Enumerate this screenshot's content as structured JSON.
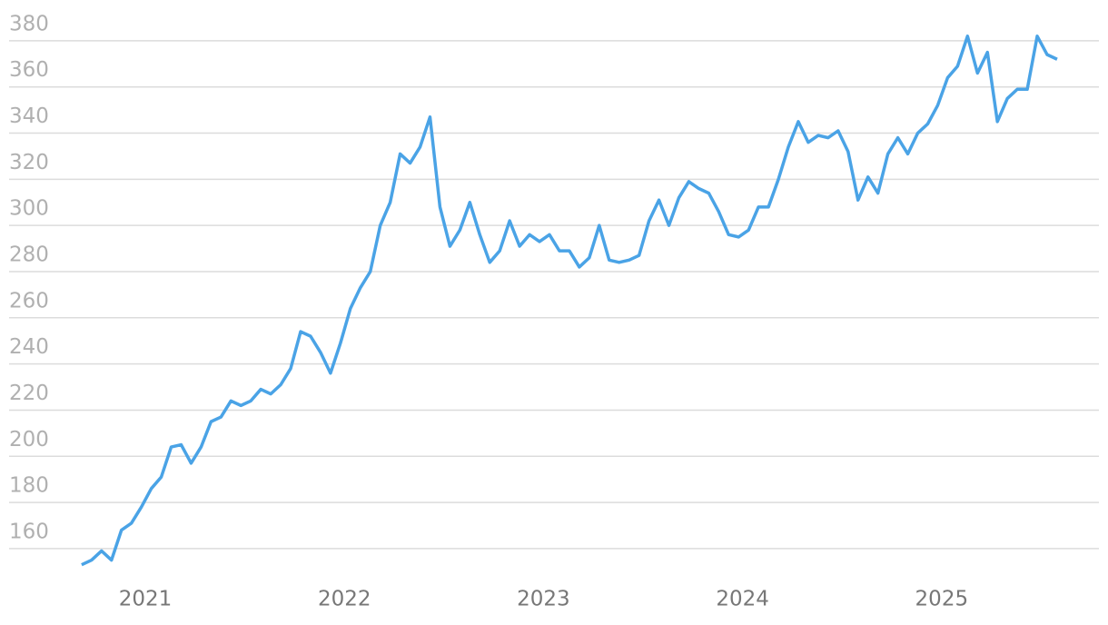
{
  "chart_data": {
    "type": "line",
    "x": [
      2020.68,
      2020.73,
      2020.78,
      2020.83,
      2020.88,
      2020.93,
      2020.98,
      2021.03,
      2021.08,
      2021.13,
      2021.18,
      2021.23,
      2021.28,
      2021.33,
      2021.38,
      2021.43,
      2021.48,
      2021.53,
      2021.58,
      2021.63,
      2021.68,
      2021.73,
      2021.78,
      2021.83,
      2021.88,
      2021.93,
      2021.98,
      2022.03,
      2022.08,
      2022.13,
      2022.18,
      2022.23,
      2022.28,
      2022.33,
      2022.38,
      2022.43,
      2022.48,
      2022.53,
      2022.58,
      2022.63,
      2022.68,
      2022.73,
      2022.78,
      2022.83,
      2022.88,
      2022.93,
      2022.98,
      2023.03,
      2023.08,
      2023.13,
      2023.18,
      2023.23,
      2023.28,
      2023.33,
      2023.38,
      2023.43,
      2023.48,
      2023.53,
      2023.58,
      2023.63,
      2023.68,
      2023.73,
      2023.78,
      2023.83,
      2023.88,
      2023.93,
      2023.98,
      2024.03,
      2024.08,
      2024.13,
      2024.18,
      2024.23,
      2024.28,
      2024.33,
      2024.38,
      2024.43,
      2024.48,
      2024.53,
      2024.58,
      2024.63,
      2024.68,
      2024.73,
      2024.78,
      2024.83,
      2024.88,
      2024.93,
      2024.98,
      2025.03,
      2025.08,
      2025.13,
      2025.18,
      2025.23,
      2025.28,
      2025.33,
      2025.38,
      2025.43,
      2025.48,
      2025.53,
      2025.58
    ],
    "series": [
      {
        "color": "#4aa3e6",
        "values": [
          153,
          155,
          159,
          155,
          168,
          171,
          178,
          186,
          191,
          204,
          205,
          197,
          204,
          215,
          217,
          224,
          222,
          224,
          229,
          227,
          231,
          238,
          254,
          252,
          245,
          236,
          249,
          264,
          273,
          280,
          300,
          310,
          331,
          327,
          334,
          347,
          308,
          291,
          298,
          310,
          296,
          284,
          289,
          302,
          291,
          296,
          293,
          296,
          289,
          289,
          282,
          286,
          300,
          285,
          284,
          285,
          287,
          302,
          311,
          300,
          312,
          319,
          316,
          314,
          306,
          296,
          295,
          298,
          308,
          308,
          320,
          334,
          345,
          336,
          339,
          338,
          341,
          332,
          311,
          321,
          314,
          331,
          338,
          331,
          340,
          344,
          352,
          364,
          369,
          382,
          366,
          375,
          345,
          355,
          359,
          359,
          382,
          374,
          372
        ]
      }
    ],
    "xlim": [
      2020.27,
      2025.79
    ],
    "xticks": [
      2021,
      2022,
      2023,
      2024,
      2025
    ],
    "ylim": [
      145,
      390
    ],
    "yticks": [
      160,
      180,
      200,
      220,
      240,
      260,
      280,
      300,
      320,
      340,
      360,
      380
    ],
    "grid": true
  }
}
